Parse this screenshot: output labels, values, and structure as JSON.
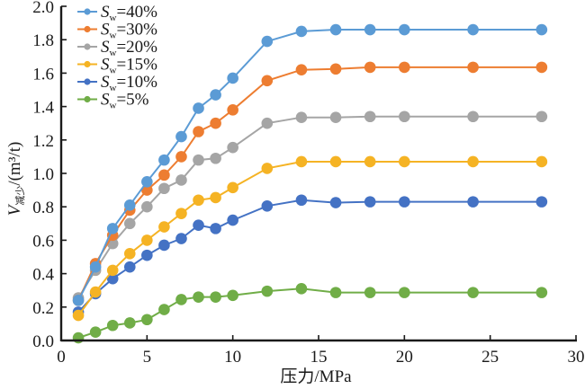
{
  "chart_data": {
    "type": "line",
    "title": "",
    "xlabel": "压力/MPa",
    "ylabel": {
      "main": "V",
      "subscript": "减少",
      "unit": "/(m³/t)"
    },
    "xlim": [
      0,
      30
    ],
    "ylim": [
      0,
      2.0
    ],
    "xticks": [
      0,
      5,
      10,
      15,
      20,
      25,
      30
    ],
    "yticks": [
      0.0,
      0.2,
      0.4,
      0.6,
      0.8,
      1.0,
      1.2,
      1.4,
      1.6,
      1.8,
      2.0
    ],
    "ytick_labels": [
      "0.0",
      "0.2",
      "0.4",
      "0.6",
      "0.8",
      "1.0",
      "1.2",
      "1.4",
      "1.6",
      "1.8",
      "2.0"
    ],
    "grid": false,
    "legend_position": "top-left",
    "x": [
      1,
      2,
      3,
      4,
      5,
      6,
      7,
      8,
      9,
      10,
      12,
      14,
      16,
      18,
      20,
      24,
      28
    ],
    "series": [
      {
        "name": "Sw=40%",
        "label_main": "S",
        "label_sub": "w",
        "label_rest": "=40%",
        "color": "#5B9BD5",
        "values": [
          0.24,
          0.44,
          0.67,
          0.81,
          0.95,
          1.08,
          1.22,
          1.39,
          1.47,
          1.57,
          1.79,
          1.85,
          1.86,
          1.86,
          1.86,
          1.86,
          1.86
        ]
      },
      {
        "name": "Sw=30%",
        "label_main": "S",
        "label_sub": "w",
        "label_rest": "=30%",
        "color": "#ED7D31",
        "values": [
          0.24,
          0.46,
          0.63,
          0.78,
          0.9,
          0.99,
          1.1,
          1.25,
          1.3,
          1.38,
          1.555,
          1.62,
          1.625,
          1.635,
          1.635,
          1.635,
          1.635
        ]
      },
      {
        "name": "Sw=20%",
        "label_main": "S",
        "label_sub": "w",
        "label_rest": "=20%",
        "color": "#A5A5A5",
        "values": [
          0.255,
          0.42,
          0.58,
          0.7,
          0.8,
          0.91,
          0.96,
          1.08,
          1.09,
          1.155,
          1.3,
          1.335,
          1.335,
          1.34,
          1.34,
          1.34,
          1.34
        ]
      },
      {
        "name": "Sw=15%",
        "label_main": "S",
        "label_sub": "w",
        "label_rest": "=15%",
        "color": "#F5B324",
        "values": [
          0.15,
          0.29,
          0.42,
          0.52,
          0.6,
          0.68,
          0.76,
          0.84,
          0.855,
          0.915,
          1.03,
          1.07,
          1.07,
          1.07,
          1.07,
          1.07,
          1.07
        ]
      },
      {
        "name": "Sw=10%",
        "label_main": "S",
        "label_sub": "w",
        "label_rest": "=10%",
        "color": "#4472C4",
        "values": [
          0.17,
          0.28,
          0.37,
          0.44,
          0.51,
          0.57,
          0.61,
          0.69,
          0.67,
          0.72,
          0.805,
          0.84,
          0.825,
          0.83,
          0.83,
          0.83,
          0.83
        ]
      },
      {
        "name": "Sw=5%",
        "label_main": "S",
        "label_sub": "w",
        "label_rest": "=5%",
        "color": "#70AD47",
        "values": [
          0.016,
          0.05,
          0.09,
          0.105,
          0.125,
          0.185,
          0.245,
          0.26,
          0.26,
          0.27,
          0.295,
          0.31,
          0.287,
          0.287,
          0.287,
          0.287,
          0.287
        ]
      }
    ]
  }
}
